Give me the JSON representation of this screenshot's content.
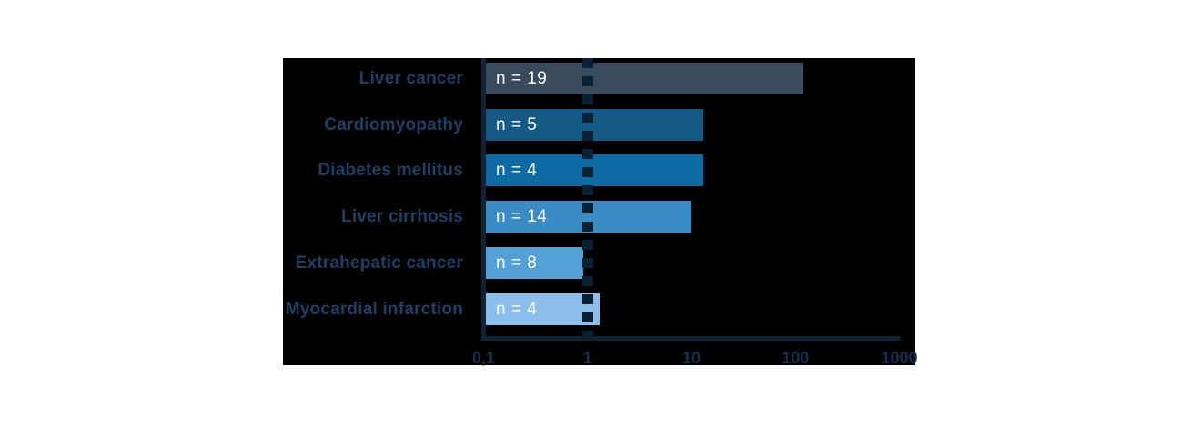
{
  "figure": {
    "page_background": "#ffffff",
    "panel_background": "#000000"
  },
  "chart_data": {
    "type": "bar",
    "orientation": "horizontal",
    "x_scale": "log",
    "xlim": [
      0.1,
      1000
    ],
    "grid": false,
    "legend": false,
    "title": "",
    "xlabel": "",
    "ylabel": "",
    "categories": [
      "Liver cancer",
      "Cardiomyopathy",
      "Diabetes mellitus",
      "Liver cirrhosis",
      "Extrahepatic cancer",
      "Myocardial infarction"
    ],
    "values": [
      120,
      13,
      13,
      10,
      0.9,
      1.3
    ],
    "bar_labels": [
      "n = 19",
      "n = 5",
      "n = 4",
      "n = 14",
      "n = 8",
      "n = 4"
    ],
    "bar_colors": [
      "#394a5c",
      "#145a84",
      "#0d6aa3",
      "#3a8cc4",
      "#52a0d6",
      "#8cbeec"
    ],
    "x_ticks": [
      {
        "label": "0,1",
        "value": 0.1
      },
      {
        "label": "1",
        "value": 1
      },
      {
        "label": "10",
        "value": 10
      },
      {
        "label": "100",
        "value": 100
      },
      {
        "label": "1000",
        "value": 1000
      }
    ],
    "reference_line_x": 1,
    "colors": {
      "axis": "#0e2439",
      "reference_line": "#0a2033",
      "category_label": "#1d4065",
      "tick_label": "#14304e",
      "bar_count_label": "#ffffff"
    }
  }
}
